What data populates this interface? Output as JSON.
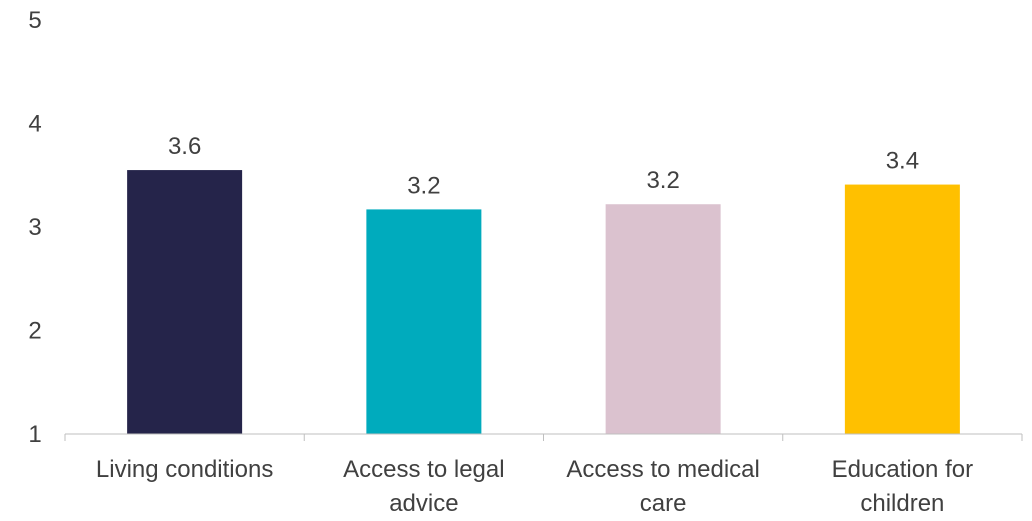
{
  "chart_data": {
    "type": "bar",
    "title": "",
    "xlabel": "",
    "ylabel": "",
    "categories": [
      [
        "Living conditions"
      ],
      [
        "Access to legal",
        "advice"
      ],
      [
        "Access to medical",
        "care"
      ],
      [
        "Education for",
        "children"
      ]
    ],
    "values": [
      3.55,
      3.17,
      3.22,
      3.41
    ],
    "data_labels": [
      "3.6",
      "3.2",
      "3.2",
      "3.4"
    ],
    "colors": [
      "#25244a",
      "#00abbd",
      "#dbc2cf",
      "#ffc000"
    ],
    "yticks": [
      "1",
      "2",
      "3",
      "4",
      "5"
    ],
    "ylim": [
      1,
      5
    ],
    "grid": false,
    "legend": "none"
  }
}
